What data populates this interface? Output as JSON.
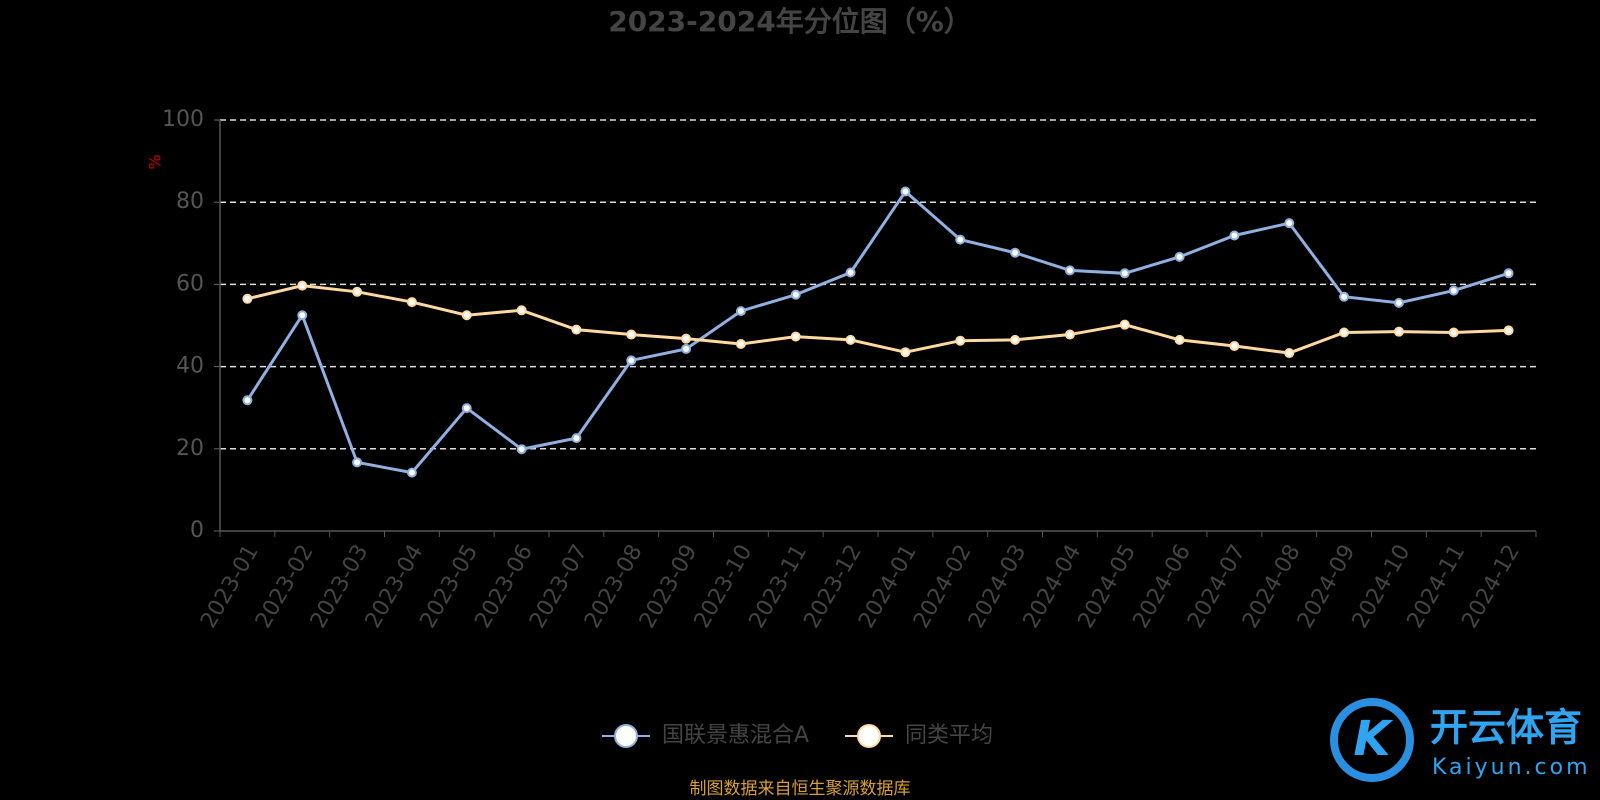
{
  "chart_data": {
    "type": "line",
    "title": "2023-2024年分位图（%）",
    "y_label": "%",
    "categories": [
      "2023-01",
      "2023-02",
      "2023-03",
      "2023-04",
      "2023-05",
      "2023-06",
      "2023-07",
      "2023-08",
      "2023-09",
      "2023-10",
      "2023-11",
      "2023-12",
      "2024-01",
      "2024-02",
      "2024-03",
      "2024-04",
      "2024-05",
      "2024-06",
      "2024-07",
      "2024-08",
      "2024-09",
      "2024-10",
      "2024-11",
      "2024-12"
    ],
    "series": [
      {
        "name": "国联景惠混合A",
        "color": "#8fb0e0",
        "values": [
          31.8,
          52.5,
          16.7,
          14.2,
          29.9,
          19.9,
          22.6,
          41.5,
          44.3,
          53.5,
          57.5,
          62.9,
          82.6,
          70.9,
          67.7,
          63.4,
          62.7,
          66.7,
          71.9,
          74.9,
          57.0,
          55.5,
          58.5,
          62.7
        ]
      },
      {
        "name": "同类平均",
        "color": "#ffd9a0",
        "values": [
          56.5,
          59.7,
          58.2,
          55.7,
          52.5,
          53.7,
          49.0,
          47.8,
          46.8,
          45.5,
          47.3,
          46.5,
          43.5,
          46.3,
          46.5,
          47.8,
          50.2,
          46.5,
          45.0,
          43.3,
          48.3,
          48.5,
          48.3,
          48.8
        ]
      }
    ],
    "ylim": [
      0,
      100
    ],
    "yticks": [
      0,
      20,
      40,
      60,
      80,
      100
    ],
    "grid": true,
    "source": "制图数据来自恒生聚源数据库",
    "watermark": {
      "name": "开云体育",
      "site": "Kaiyun.com"
    }
  }
}
